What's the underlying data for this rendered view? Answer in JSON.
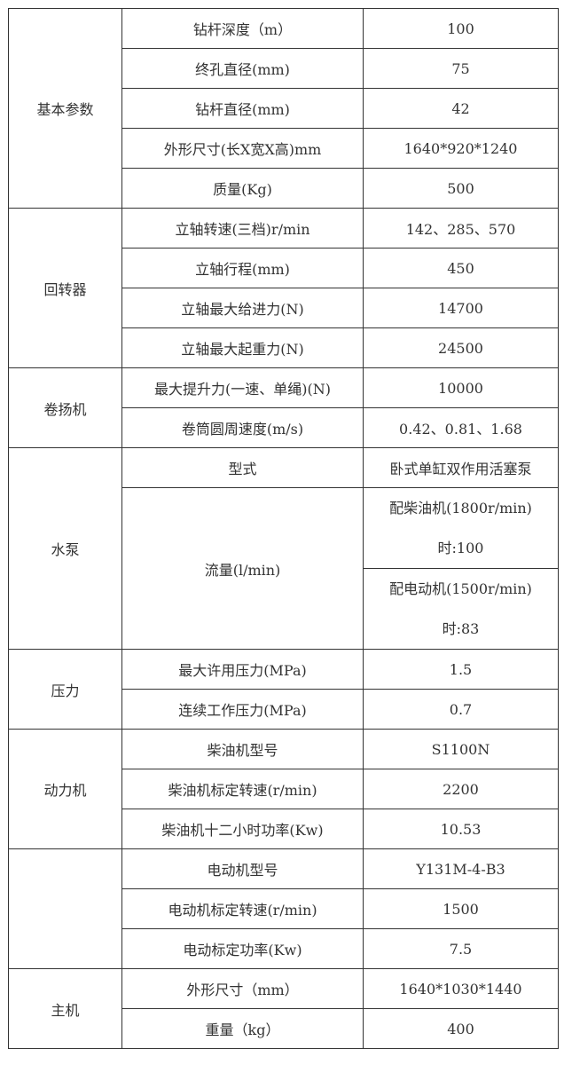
{
  "groups": [
    {
      "label": "基本参数",
      "rows": [
        {
          "name": "钻杆深度（m）",
          "value": "100"
        },
        {
          "name": "终孔直径(mm)",
          "value": "75"
        },
        {
          "name": "钻杆直径(mm)",
          "value": "42"
        },
        {
          "name": "外形尺寸(长X宽X高)mm",
          "value": "1640*920*1240"
        },
        {
          "name": "质量(Kg)",
          "value": "500"
        }
      ]
    },
    {
      "label": "回转器",
      "rows": [
        {
          "name": "立轴转速(三档)r/min",
          "value": "142、285、570"
        },
        {
          "name": "立轴行程(mm)",
          "value": "450"
        },
        {
          "name": "立轴最大给进力(N)",
          "value": "14700"
        },
        {
          "name": "立轴最大起重力(N)",
          "value": "24500"
        }
      ]
    },
    {
      "label": "卷扬机",
      "rows": [
        {
          "name": "最大提升力(一速、单绳)(N)",
          "value": "10000"
        },
        {
          "name": "卷筒圆周速度(m/s)",
          "value": "0.42、0.81、1.68"
        }
      ]
    },
    {
      "label": "水泵",
      "rows": [
        {
          "name": "型式",
          "value": "卧式单缸双作用活塞泵"
        },
        {
          "name": "流量(l/min)",
          "values": [
            [
              "配柴油机(1800r/min)",
              "时:100"
            ],
            [
              "配电动机(1500r/min)",
              "时:83"
            ]
          ]
        }
      ]
    },
    {
      "label": "压力",
      "rows": [
        {
          "name": "最大许用压力(MPa)",
          "value": "1.5"
        },
        {
          "name": "连续工作压力(MPa)",
          "value": "0.7"
        }
      ]
    },
    {
      "label": "动力机",
      "rows": [
        {
          "name": "柴油机型号",
          "value": "S1100N"
        },
        {
          "name": "柴油机标定转速(r/min)",
          "value": "2200"
        },
        {
          "name": "柴油机十二小时功率(Kw)",
          "value": "10.53"
        }
      ]
    },
    {
      "label": "",
      "rows": [
        {
          "name": "电动机型号",
          "value": "Y131M-4-B3"
        },
        {
          "name": "电动机标定转速(r/min)",
          "value": "1500"
        },
        {
          "name": "电动标定功率(Kw)",
          "value": "7.5"
        }
      ]
    },
    {
      "label": "主机",
      "rows": [
        {
          "name": "外形尺寸（mm）",
          "value": "1640*1030*1440"
        },
        {
          "name": "重量（kg）",
          "value": "400"
        }
      ]
    }
  ]
}
